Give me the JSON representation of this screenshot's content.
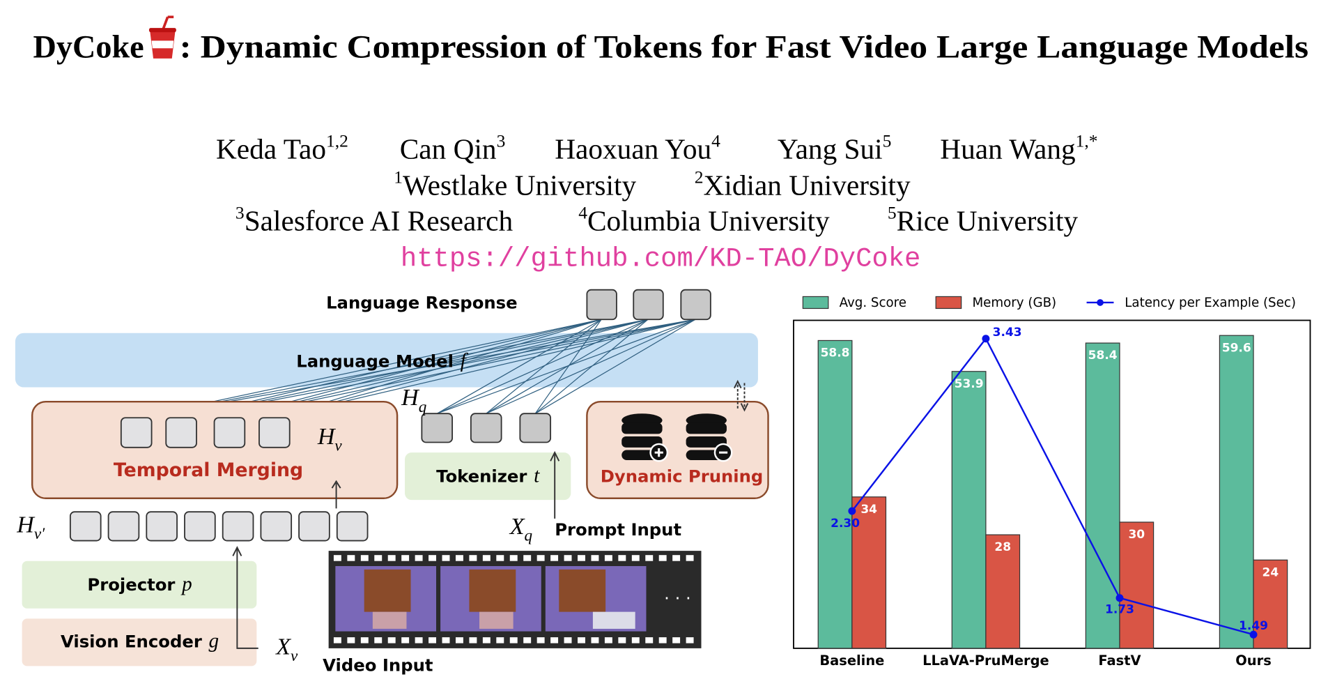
{
  "title": {
    "name": "DyCoke",
    "rest": ": Dynamic Compression of Tokens for Fast Video Large Language Models"
  },
  "authors": [
    {
      "name": "Keda Tao",
      "sup": "1,2"
    },
    {
      "name": "Can Qin",
      "sup": "3"
    },
    {
      "name": "Haoxuan You",
      "sup": "4"
    },
    {
      "name": "Yang Sui",
      "sup": "5"
    },
    {
      "name": "Huan Wang",
      "sup": "1,*"
    }
  ],
  "affiliations": [
    [
      {
        "sup": "1",
        "name": "Westlake University"
      },
      {
        "sup": "2",
        "name": "Xidian University"
      }
    ],
    [
      {
        "sup": "3",
        "name": "Salesforce AI Research"
      },
      {
        "sup": "4",
        "name": "Columbia University"
      },
      {
        "sup": "5",
        "name": "Rice University"
      }
    ]
  ],
  "url": "https://github.com/KD-TAO/DyCoke",
  "diagram": {
    "language_response": "Language Response",
    "language_model": {
      "label": "Language Model",
      "symbol": "f"
    },
    "temporal_merging": "Temporal Merging",
    "h_v": {
      "base": "H",
      "sub": "v"
    },
    "h_q": {
      "base": "H",
      "sub": "q"
    },
    "tokenizer": {
      "label": "Tokenizer",
      "symbol": "t"
    },
    "dynamic_pruning": "Dynamic Pruning",
    "h_v_prime": {
      "base": "H",
      "sub": "v′"
    },
    "x_q": {
      "base": "X",
      "sub": "q"
    },
    "prompt_input": "Prompt Input",
    "projector": {
      "label": "Projector",
      "symbol": "p"
    },
    "vision_encoder": {
      "label": "Vision Encoder",
      "symbol": "g"
    },
    "x_v": {
      "base": "X",
      "sub": "v"
    },
    "video_input": "Video Input",
    "ellipsis": "· · ·"
  },
  "chart_data": {
    "type": "bar",
    "categories": [
      "Baseline",
      "LLaVA-PruMerge",
      "FastV",
      "Ours"
    ],
    "series": [
      {
        "name": "Avg. Score",
        "color": "#5cbb9c",
        "values": [
          58.8,
          53.9,
          58.4,
          59.6
        ]
      },
      {
        "name": "Memory (GB)",
        "color": "#d95545",
        "values": [
          34,
          28,
          30,
          24
        ]
      },
      {
        "name": "Latency per Example (Sec)",
        "type": "line",
        "axis": "y2",
        "color": "#0a12e6",
        "values": [
          2.3,
          3.43,
          1.73,
          1.49
        ],
        "value_labels": [
          "2.30",
          "3.43",
          "1.73",
          "1.49"
        ]
      }
    ],
    "ylim": [
      10,
      62
    ],
    "y2lim": [
      1.4,
      3.55
    ],
    "legend": "top"
  }
}
